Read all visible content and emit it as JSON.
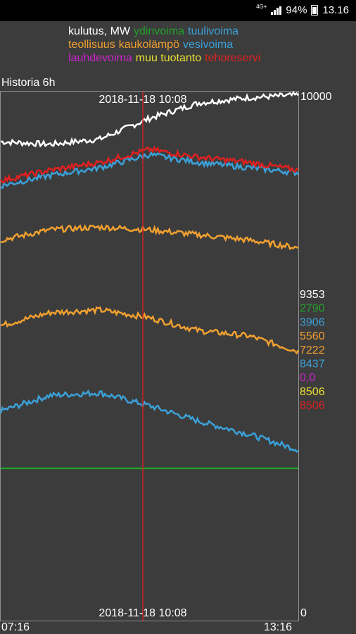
{
  "status_bar": {
    "network": "4G+",
    "battery": "94%",
    "time": "13.16"
  },
  "legend": [
    [
      {
        "label": "kulutus, MW",
        "color": "#ffffff"
      },
      {
        "label": "ydinvoima",
        "color": "#22a02a"
      },
      {
        "label": "tuulivoima",
        "color": "#3ba0d8"
      }
    ],
    [
      {
        "label": "teollisuus",
        "color": "#f0a030"
      },
      {
        "label": "kaukolämpö",
        "color": "#f0a030"
      },
      {
        "label": "vesivoima",
        "color": "#3ba0d8"
      }
    ],
    [
      {
        "label": "lauhdevoima",
        "color": "#cc22cc"
      },
      {
        "label": "muu tuotanto",
        "color": "#e8e030"
      },
      {
        "label": "tehoreservi",
        "color": "#e02020"
      }
    ]
  ],
  "history_label": "Historia 6h",
  "cursor": {
    "time_top": "2018-11-18 10:08",
    "time_bottom": "2018-11-18 10:08",
    "color": "#cc2222"
  },
  "axis": {
    "y_max_label": "10000",
    "y_min_label": "0",
    "x_start_label": "07:16",
    "x_end_label": "13:16"
  },
  "current_values": [
    {
      "value": "9353",
      "color": "#ffffff"
    },
    {
      "value": "2790",
      "color": "#22a02a"
    },
    {
      "value": "3906",
      "color": "#3ba0d8"
    },
    {
      "value": "5560",
      "color": "#f0a030"
    },
    {
      "value": "7222",
      "color": "#f0a030"
    },
    {
      "value": "8437",
      "color": "#3ba0d8"
    },
    {
      "value": "0,0",
      "color": "#cc22cc"
    },
    {
      "value": "8506",
      "color": "#e8e030"
    },
    {
      "value": "8506",
      "color": "#e02020"
    }
  ],
  "chart_data": {
    "type": "line",
    "ylim": [
      0,
      10000
    ],
    "x": [
      "07:16",
      "08:16",
      "09:16",
      "10:16",
      "11:16",
      "12:16",
      "13:16"
    ],
    "series": [
      {
        "name": "kulutus, MW",
        "color": "#ffffff",
        "values": [
          9100,
          9050,
          9150,
          9550,
          9850,
          9950,
          10000
        ]
      },
      {
        "name": "ydinvoima",
        "color": "#22a02a",
        "values": [
          2790,
          2790,
          2790,
          2790,
          2790,
          2790,
          2790
        ]
      },
      {
        "name": "tuulivoima",
        "color": "#3ba0d8",
        "values": [
          3900,
          4200,
          4250,
          4000,
          3700,
          3450,
          3150
        ]
      },
      {
        "name": "kaukolämpö",
        "color": "#f0a030",
        "values": [
          5550,
          5800,
          5850,
          5700,
          5450,
          5350,
          5050
        ]
      },
      {
        "name": "teollisuus",
        "color": "#f0a030",
        "values": [
          7200,
          7400,
          7450,
          7400,
          7300,
          7200,
          7050
        ]
      },
      {
        "name": "vesivoima",
        "color": "#3ba0d8",
        "values": [
          8250,
          8450,
          8600,
          8850,
          8700,
          8600,
          8500
        ]
      },
      {
        "name": "tehoreservi",
        "color": "#e02020",
        "values": [
          8350,
          8550,
          8700,
          8950,
          8800,
          8700,
          8550
        ]
      }
    ]
  }
}
